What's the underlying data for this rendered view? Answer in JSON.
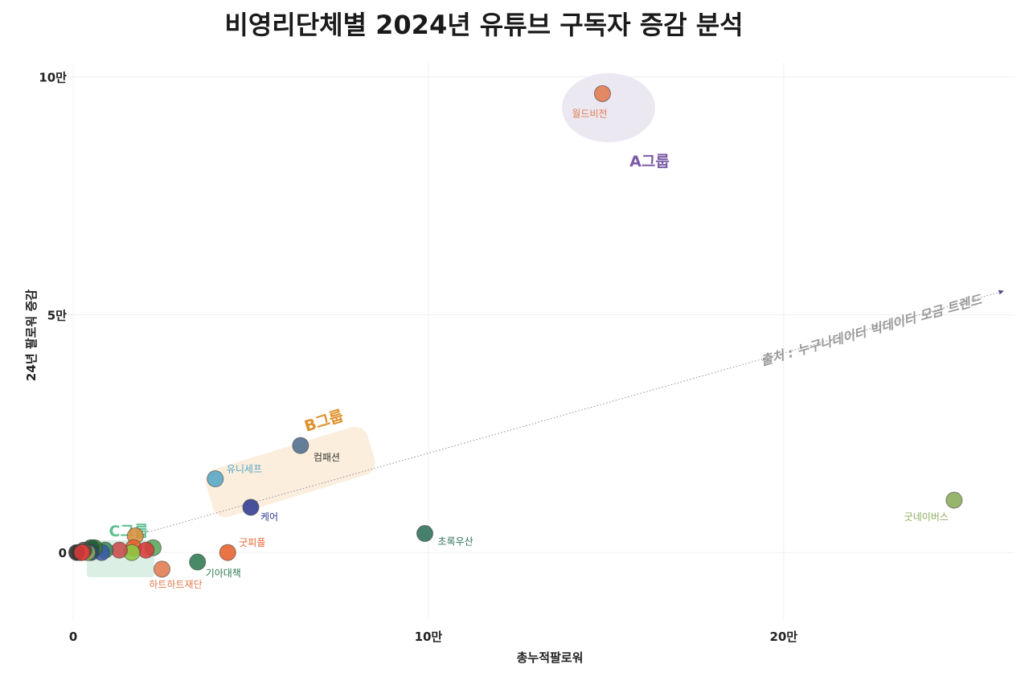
{
  "chart_data": {
    "type": "scatter",
    "title": "비영리단체별 2024년 유튜브 구독자 증감 분석",
    "xlabel": "총누적팔로워",
    "ylabel": "24년 팔로워 증감",
    "xlim": [
      -2500,
      265000
    ],
    "ylim": [
      -14000,
      103000
    ],
    "xticks": [
      {
        "value": 0,
        "label": "0"
      },
      {
        "value": 100000,
        "label": "10만"
      },
      {
        "value": 200000,
        "label": "20만"
      }
    ],
    "yticks": [
      {
        "value": 0,
        "label": "0"
      },
      {
        "value": 50000,
        "label": "5만"
      },
      {
        "value": 100000,
        "label": "10만"
      }
    ],
    "grid": true,
    "points": [
      {
        "label": "월드비전",
        "x": 149000,
        "y": 96500,
        "color": "#e07a4f",
        "label_color": "#e07a4f"
      },
      {
        "label": "컴패션",
        "x": 64000,
        "y": 22500,
        "color": "#4f6d8f",
        "label_color": "#333333"
      },
      {
        "label": "유니세프",
        "x": 40000,
        "y": 15500,
        "color": "#55a6c5",
        "label_color": "#55a6c5"
      },
      {
        "label": "케어",
        "x": 50000,
        "y": 9500,
        "color": "#2f3a8f",
        "label_color": "#2f3a8f"
      },
      {
        "label": "초록우산",
        "x": 99000,
        "y": 4000,
        "color": "#2e6e58",
        "label_color": "#2e6e58"
      },
      {
        "label": "굿네이버스",
        "x": 248000,
        "y": 11000,
        "color": "#8aab5a",
        "label_color": "#8aab5a"
      },
      {
        "label": "굿피플",
        "x": 43500,
        "y": 0,
        "color": "#e8612c",
        "label_color": "#e8612c"
      },
      {
        "label": "기아대책",
        "x": 35000,
        "y": -2000,
        "color": "#2e7a50",
        "label_color": "#2e7a50"
      },
      {
        "label": "하트하트재단",
        "x": 25000,
        "y": -3500,
        "color": "#e07a4f",
        "label_color": "#e07a4f"
      },
      {
        "label": "",
        "x": 17500,
        "y": 3500,
        "color": "#d9903a"
      },
      {
        "label": "",
        "x": 17000,
        "y": 1000,
        "color": "#e8612c"
      },
      {
        "label": "",
        "x": 22500,
        "y": 1000,
        "color": "#5aa65a"
      },
      {
        "label": "",
        "x": 20500,
        "y": 500,
        "color": "#d93a3a"
      },
      {
        "label": "",
        "x": 16500,
        "y": 0,
        "color": "#8cc63f"
      },
      {
        "label": "",
        "x": 13000,
        "y": 500,
        "color": "#c94a4a"
      },
      {
        "label": "",
        "x": 9000,
        "y": 500,
        "color": "#3a8a5a"
      },
      {
        "label": "",
        "x": 8000,
        "y": 0,
        "color": "#3a5aa6"
      },
      {
        "label": "",
        "x": 6000,
        "y": 1000,
        "color": "#2f7a2f"
      },
      {
        "label": "",
        "x": 5000,
        "y": 1000,
        "color": "#1f5a3a"
      },
      {
        "label": "",
        "x": 5000,
        "y": 0,
        "color": "#2a4a6a"
      },
      {
        "label": "",
        "x": 4000,
        "y": 0,
        "color": "#8aab5a"
      },
      {
        "label": "",
        "x": 3000,
        "y": 500,
        "color": "#4a4a4a"
      },
      {
        "label": "",
        "x": 2000,
        "y": 0,
        "color": "#d9903a"
      },
      {
        "label": "",
        "x": 1000,
        "y": 0,
        "color": "#2a2a2a"
      },
      {
        "label": "",
        "x": 2500,
        "y": 0,
        "color": "#d93a3a"
      }
    ],
    "groups": [
      {
        "label": "A그룹",
        "color": "#7a5aa6",
        "fill": "#ece8f2"
      },
      {
        "label": "B그룹",
        "color": "#e0902a",
        "fill": "#fbeedd"
      },
      {
        "label": "C그룹",
        "color": "#5fbf8f",
        "fill": "#dcefe4"
      }
    ],
    "trendline": {
      "label": "출처 : 누구나데이터 빅데이터 모금 트렌드",
      "x0": 15000,
      "y0": 3000,
      "x1": 262000,
      "y1": 55000,
      "color": "#9a8aa6"
    }
  }
}
